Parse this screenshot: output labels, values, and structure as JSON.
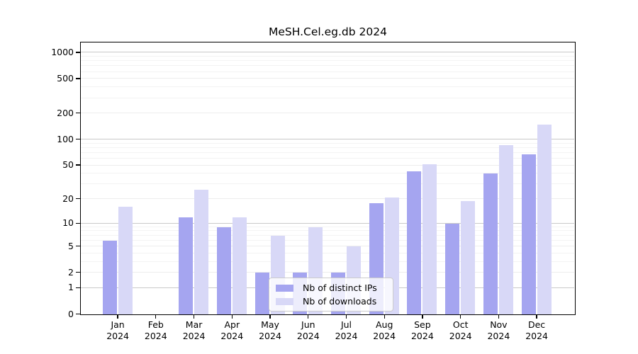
{
  "figure": {
    "title": "MeSH.Cel.eg.db 2024"
  },
  "chart_data": {
    "type": "bar",
    "title": "MeSH.Cel.eg.db 2024",
    "y_scale": "log1p",
    "grid": true,
    "legend_position": "lower-center-inside",
    "year_label": "2024",
    "months": [
      "Jan",
      "Feb",
      "Mar",
      "Apr",
      "May",
      "Jun",
      "Jul",
      "Aug",
      "Sep",
      "Oct",
      "Nov",
      "Dec"
    ],
    "categories": [
      "Jan 2024",
      "Feb 2024",
      "Mar 2024",
      "Apr 2024",
      "May 2024",
      "Jun 2024",
      "Jul 2024",
      "Aug 2024",
      "Sep 2024",
      "Oct 2024",
      "Nov 2024",
      "Dec 2024"
    ],
    "series": [
      {
        "name": "Nb of distinct IPs",
        "color": "#a5a5f0",
        "values": [
          6,
          0,
          12,
          9,
          2,
          2,
          2,
          18,
          43,
          10,
          40,
          67
        ]
      },
      {
        "name": "Nb of downloads",
        "color": "#d8d8f7",
        "values": [
          16,
          0,
          26,
          12,
          7,
          9,
          5,
          21,
          52,
          19,
          86,
          150
        ]
      }
    ],
    "y_ticks": [
      1000,
      500,
      200,
      100,
      50,
      20,
      10,
      5,
      2,
      1,
      0
    ],
    "y_major_gridlines": [
      1,
      10,
      100,
      1000
    ],
    "y_minor_gridlines": [
      3,
      4,
      6,
      7,
      8,
      9,
      30,
      40,
      60,
      70,
      80,
      90,
      300,
      400,
      600,
      700,
      800,
      900
    ],
    "ylim": [
      0,
      1300
    ],
    "colors": {
      "axis": "#000000",
      "gridline_major": "#c9c9c9",
      "gridline_mid": "#ededed",
      "gridline_minor": "#f3f3f3",
      "background": "#ffffff"
    }
  }
}
